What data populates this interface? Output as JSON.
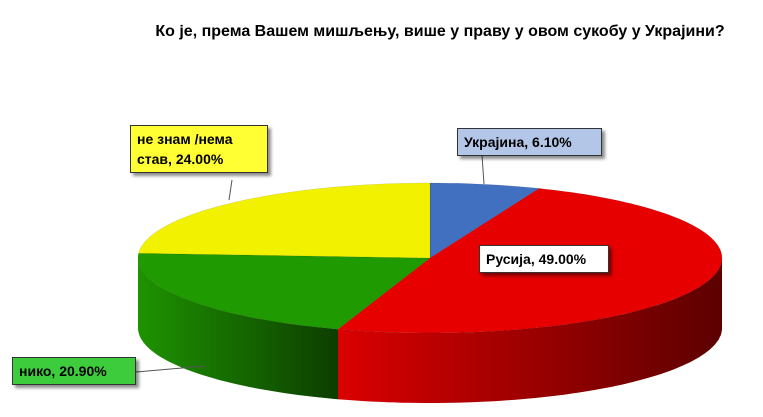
{
  "chart_data": {
    "type": "pie3d",
    "title": "Ко је, према Вашем мишљењу,  више у праву у овом сукобу у Украјини?",
    "categories": [
      "Украјина",
      "Русија",
      "нико",
      "не знам /нема став"
    ],
    "values": [
      6.1,
      49.0,
      20.9,
      24.0
    ],
    "value_labels": [
      "Украјина, 6.10%",
      "Русија, 49.00%",
      "нико, 20.90%",
      "не знам /нема став, 24.00%"
    ],
    "colors": [
      "#4170c0",
      "#e60000",
      "#1f9a00",
      "#f2f200"
    ]
  }
}
